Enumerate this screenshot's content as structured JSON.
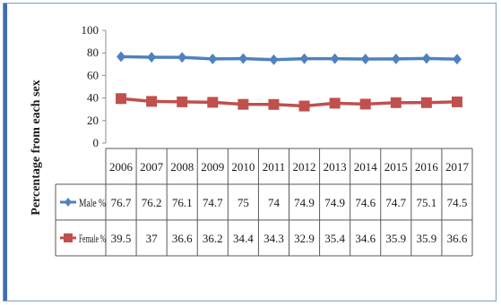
{
  "chart_data": {
    "type": "line",
    "ylabel": "Percentage from each sex",
    "ylim": [
      0,
      100
    ],
    "yticks": [
      "0",
      "20",
      "40",
      "60",
      "80",
      "100"
    ],
    "categories": [
      "2006",
      "2007",
      "2008",
      "2009",
      "2010",
      "2011",
      "2012",
      "2013",
      "2014",
      "2015",
      "2016",
      "2017"
    ],
    "series": [
      {
        "name": "Male %",
        "color": "#4f81bd",
        "marker": "diamond",
        "values": [
          76.7,
          76.2,
          76.1,
          74.7,
          75,
          74,
          74.9,
          74.9,
          74.6,
          74.7,
          75.1,
          74.5
        ],
        "labels": [
          "76.7",
          "76.2",
          "76.1",
          "74.7",
          "75",
          "74",
          "74.9",
          "74.9",
          "74.6",
          "74.7",
          "75.1",
          "74.5"
        ]
      },
      {
        "name": "Female %",
        "color": "#c0504d",
        "marker": "square",
        "values": [
          39.5,
          37,
          36.6,
          36.2,
          34.4,
          34.3,
          32.9,
          35.4,
          34.6,
          35.9,
          35.9,
          36.6
        ],
        "labels": [
          "39.5",
          "37",
          "36.6",
          "36.2",
          "34.4",
          "34.3",
          "32.9",
          "35.4",
          "34.6",
          "35.9",
          "35.9",
          "36.6"
        ]
      }
    ],
    "grid": false,
    "legend": "data-table"
  }
}
